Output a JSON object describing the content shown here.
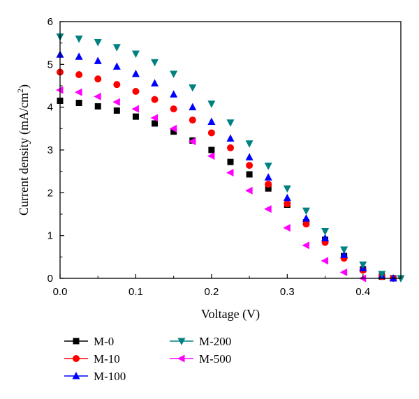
{
  "chart_data": {
    "type": "scatter",
    "title": "",
    "xlabel": "Voltage (V)",
    "ylabel_main": "Current density (mA/cm",
    "ylabel_sup": "2",
    "ylabel_close": ")",
    "xlim": [
      0,
      0.45
    ],
    "ylim": [
      0,
      6
    ],
    "xticks": [
      0.0,
      0.1,
      0.2,
      0.3,
      0.4
    ],
    "xtick_labels": [
      "0.0",
      "0.1",
      "0.2",
      "0.3",
      "0.4"
    ],
    "yticks": [
      0,
      1,
      2,
      3,
      4,
      5,
      6
    ],
    "ytick_labels": [
      "0",
      "1",
      "2",
      "3",
      "4",
      "5",
      "6"
    ],
    "grid": false,
    "legend_position": "below-plot",
    "series": [
      {
        "name": "M-0",
        "color": "#000000",
        "marker": "square",
        "x": [
          0.0,
          0.025,
          0.05,
          0.075,
          0.1,
          0.125,
          0.15,
          0.175,
          0.2,
          0.225,
          0.25,
          0.275,
          0.3,
          0.325,
          0.35,
          0.375,
          0.4,
          0.425,
          0.44
        ],
        "y": [
          4.15,
          4.1,
          4.02,
          3.92,
          3.78,
          3.62,
          3.43,
          3.22,
          3.0,
          2.72,
          2.43,
          2.1,
          1.72,
          1.31,
          0.9,
          0.52,
          0.21,
          0.04,
          0.0
        ]
      },
      {
        "name": "M-10",
        "color": "#ff0000",
        "marker": "circle",
        "x": [
          0.0,
          0.025,
          0.05,
          0.075,
          0.1,
          0.125,
          0.15,
          0.175,
          0.2,
          0.225,
          0.25,
          0.275,
          0.3,
          0.325,
          0.35,
          0.375,
          0.4,
          0.425,
          0.44
        ],
        "y": [
          4.82,
          4.76,
          4.66,
          4.53,
          4.37,
          4.18,
          3.96,
          3.7,
          3.4,
          3.05,
          2.64,
          2.2,
          1.74,
          1.27,
          0.84,
          0.47,
          0.19,
          0.04,
          0.0
        ]
      },
      {
        "name": "M-100",
        "color": "#0000ff",
        "marker": "triangle-up",
        "x": [
          0.0,
          0.025,
          0.05,
          0.075,
          0.1,
          0.125,
          0.15,
          0.175,
          0.2,
          0.225,
          0.25,
          0.275,
          0.3,
          0.325,
          0.35,
          0.375,
          0.4,
          0.425,
          0.44
        ],
        "y": [
          5.23,
          5.18,
          5.08,
          4.95,
          4.78,
          4.56,
          4.3,
          4.0,
          3.66,
          3.27,
          2.83,
          2.36,
          1.88,
          1.4,
          0.94,
          0.55,
          0.24,
          0.06,
          0.0
        ]
      },
      {
        "name": "M-200",
        "color": "#008080",
        "marker": "triangle-down",
        "x": [
          0.0,
          0.025,
          0.05,
          0.075,
          0.1,
          0.125,
          0.15,
          0.175,
          0.2,
          0.225,
          0.25,
          0.275,
          0.3,
          0.325,
          0.35,
          0.375,
          0.4,
          0.425,
          0.45
        ],
        "y": [
          5.65,
          5.6,
          5.52,
          5.4,
          5.25,
          5.05,
          4.78,
          4.46,
          4.08,
          3.64,
          3.15,
          2.63,
          2.1,
          1.58,
          1.1,
          0.67,
          0.32,
          0.1,
          0.0
        ]
      },
      {
        "name": "M-500",
        "color": "#ff00ff",
        "marker": "triangle-left",
        "x": [
          0.0,
          0.025,
          0.05,
          0.075,
          0.1,
          0.125,
          0.15,
          0.175,
          0.2,
          0.225,
          0.25,
          0.275,
          0.3,
          0.325,
          0.35,
          0.375,
          0.4
        ],
        "y": [
          4.4,
          4.35,
          4.25,
          4.12,
          3.96,
          3.75,
          3.5,
          3.2,
          2.86,
          2.47,
          2.05,
          1.62,
          1.18,
          0.77,
          0.41,
          0.14,
          0.0
        ]
      }
    ]
  }
}
